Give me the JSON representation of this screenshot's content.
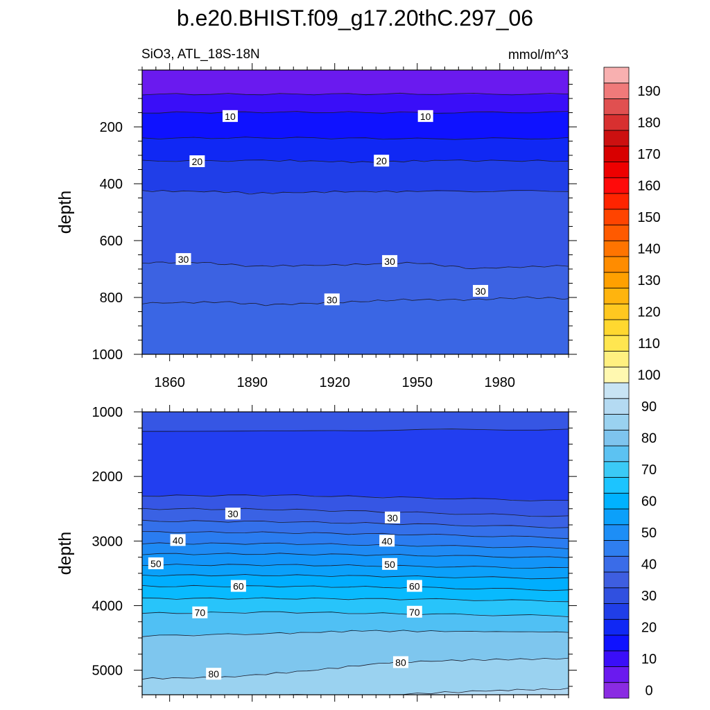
{
  "chart_data": {
    "type": "contour",
    "title": "b.e20.BHIST.f09_g17.20thC.297_06",
    "variable_label": "SiO3, ATL_18S-18N",
    "units": "mmol/m^3",
    "x_ticks": [
      1860,
      1890,
      1920,
      1950,
      1980
    ],
    "xlim": [
      1850,
      2005
    ],
    "colorbar": {
      "levels": [
        0,
        5,
        10,
        15,
        20,
        25,
        30,
        35,
        40,
        45,
        50,
        55,
        60,
        65,
        70,
        75,
        80,
        85,
        90,
        95,
        100,
        105,
        110,
        115,
        120,
        125,
        130,
        135,
        140,
        145,
        150,
        155,
        160,
        165,
        170,
        175,
        180,
        185,
        190,
        195
      ],
      "tick_labels": [
        "0",
        "10",
        "20",
        "30",
        "40",
        "50",
        "60",
        "70",
        "80",
        "90",
        "100",
        "110",
        "120",
        "130",
        "140",
        "150",
        "160",
        "170",
        "180",
        "190"
      ],
      "colors": [
        "#8a2be2",
        "#6a1aef",
        "#3a0ef8",
        "#0f12ff",
        "#1028f4",
        "#203ee8",
        "#3050e0",
        "#3e5ee0",
        "#3a6ce8",
        "#2f7ef0",
        "#1d8ef6",
        "#0ca0fa",
        "#00b2ff",
        "#1cc4ff",
        "#3bcaf6",
        "#5cc2f2",
        "#7ec4ee",
        "#9ad2f0",
        "#b4daf2",
        "#c8e4f4",
        "#fff8b0",
        "#fff080",
        "#ffe650",
        "#ffd830",
        "#ffc820",
        "#ffb40e",
        "#ffa000",
        "#ff8c00",
        "#ff7400",
        "#ff5a00",
        "#ff4400",
        "#ff2400",
        "#ff0a0a",
        "#ee0000",
        "#d80000",
        "#cc1010",
        "#d83030",
        "#e05050",
        "#f07a7a",
        "#f8b0b0"
      ]
    },
    "panels": [
      {
        "name": "upper",
        "ylabel": "depth",
        "ylim": [
          0,
          1000
        ],
        "y_ticks": [
          200,
          400,
          600,
          800,
          1000
        ],
        "bands": [
          {
            "top": [
              [
                1850,
                0
              ],
              [
                2005,
                0
              ]
            ],
            "color": "#6a1aef"
          },
          {
            "top": [
              [
                1850,
                85
              ],
              [
                1900,
                85
              ],
              [
                1950,
                84
              ],
              [
                2005,
                85
              ]
            ],
            "color": "#3a0ef8"
          },
          {
            "top": [
              [
                1850,
                150
              ],
              [
                1900,
                148
              ],
              [
                1950,
                150
              ],
              [
                2005,
                148
              ]
            ],
            "color": "#0f12ff"
          },
          {
            "top": [
              [
                1850,
                240
              ],
              [
                1900,
                238
              ],
              [
                1950,
                242
              ],
              [
                2005,
                240
              ]
            ],
            "color": "#1028f4"
          },
          {
            "top": [
              [
                1850,
                320
              ],
              [
                1900,
                318
              ],
              [
                1930,
                324
              ],
              [
                1960,
                318
              ],
              [
                2005,
                320
              ]
            ],
            "color": "#203ee8"
          },
          {
            "top": [
              [
                1850,
                425
              ],
              [
                1880,
                428
              ],
              [
                1890,
                434
              ],
              [
                1920,
                428
              ],
              [
                1950,
                427
              ],
              [
                2005,
                425
              ]
            ],
            "color": "#3656e4"
          },
          {
            "top": [
              [
                1850,
                678
              ],
              [
                1870,
                676
              ],
              [
                1890,
                690
              ],
              [
                1920,
                686
              ],
              [
                1950,
                678
              ],
              [
                1970,
                698
              ],
              [
                2005,
                688
              ]
            ],
            "color": "#3c62e2"
          },
          {
            "top": [
              [
                1850,
                820
              ],
              [
                1880,
                816
              ],
              [
                1895,
                826
              ],
              [
                1920,
                818
              ],
              [
                1945,
                808
              ],
              [
                1970,
                808
              ],
              [
                1990,
                800
              ],
              [
                2005,
                804
              ]
            ],
            "color": "#3a66e4"
          }
        ],
        "contour_labels": [
          {
            "text": "10",
            "x": 1882,
            "y": 163
          },
          {
            "text": "10",
            "x": 1953,
            "y": 163
          },
          {
            "text": "20",
            "x": 1870,
            "y": 322
          },
          {
            "text": "20",
            "x": 1937,
            "y": 320
          },
          {
            "text": "30",
            "x": 1865,
            "y": 666
          },
          {
            "text": "30",
            "x": 1940,
            "y": 673
          },
          {
            "text": "30",
            "x": 1919,
            "y": 808
          },
          {
            "text": "30",
            "x": 1973,
            "y": 778
          }
        ]
      },
      {
        "name": "lower",
        "ylabel": "depth",
        "ylim": [
          1000,
          5380
        ],
        "y_ticks": [
          1000,
          2000,
          3000,
          4000,
          5000
        ],
        "bands": [
          {
            "top": [
              [
                1850,
                1000
              ],
              [
                2005,
                1000
              ]
            ],
            "color": "#3656e4"
          },
          {
            "top": [
              [
                1850,
                1290
              ],
              [
                1920,
                1285
              ],
              [
                2005,
                1270
              ]
            ],
            "color": "#223ef0"
          },
          {
            "top": [
              [
                1850,
                2300
              ],
              [
                1900,
                2290
              ],
              [
                1950,
                2330
              ],
              [
                2005,
                2380
              ]
            ],
            "color": "#3656e4"
          },
          {
            "top": [
              [
                1850,
                2500
              ],
              [
                1900,
                2510
              ],
              [
                1950,
                2560
              ],
              [
                2005,
                2620
              ]
            ],
            "color": "#3a62e4"
          },
          {
            "top": [
              [
                1850,
                2690
              ],
              [
                1900,
                2700
              ],
              [
                1950,
                2740
              ],
              [
                2005,
                2790
              ]
            ],
            "color": "#3470ea"
          },
          {
            "top": [
              [
                1850,
                2860
              ],
              [
                1900,
                2870
              ],
              [
                1950,
                2900
              ],
              [
                2005,
                2950
              ]
            ],
            "color": "#2a7cf0"
          },
          {
            "top": [
              [
                1850,
                3040
              ],
              [
                1900,
                3040
              ],
              [
                1950,
                3070
              ],
              [
                2005,
                3110
              ]
            ],
            "color": "#1e8af4"
          },
          {
            "top": [
              [
                1850,
                3200
              ],
              [
                1900,
                3200
              ],
              [
                1950,
                3220
              ],
              [
                2005,
                3260
              ]
            ],
            "color": "#1294f8"
          },
          {
            "top": [
              [
                1850,
                3370
              ],
              [
                1900,
                3370
              ],
              [
                1950,
                3390
              ],
              [
                2005,
                3420
              ]
            ],
            "color": "#0aa0fa"
          },
          {
            "top": [
              [
                1850,
                3530
              ],
              [
                1900,
                3530
              ],
              [
                1950,
                3550
              ],
              [
                2005,
                3580
              ]
            ],
            "color": "#00aefe"
          },
          {
            "top": [
              [
                1850,
                3700
              ],
              [
                1900,
                3700
              ],
              [
                1950,
                3720
              ],
              [
                2005,
                3760
              ]
            ],
            "color": "#08bafe"
          },
          {
            "top": [
              [
                1850,
                3890
              ],
              [
                1900,
                3890
              ],
              [
                1950,
                3900
              ],
              [
                2005,
                3930
              ]
            ],
            "color": "#28c4fa"
          },
          {
            "top": [
              [
                1850,
                4120
              ],
              [
                1900,
                4100
              ],
              [
                1950,
                4130
              ],
              [
                2005,
                4160
              ]
            ],
            "color": "#50c0f4"
          },
          {
            "top": [
              [
                1850,
                4470
              ],
              [
                1900,
                4430
              ],
              [
                1930,
                4390
              ],
              [
                1970,
                4400
              ],
              [
                2005,
                4410
              ]
            ],
            "color": "#7ec6ee"
          },
          {
            "top": [
              [
                1850,
                5130
              ],
              [
                1880,
                5110
              ],
              [
                1910,
                5010
              ],
              [
                1940,
                4880
              ],
              [
                1970,
                4840
              ],
              [
                2005,
                4820
              ]
            ],
            "color": "#9ad2f0"
          },
          {
            "top": [
              [
                1850,
                5400
              ],
              [
                1940,
                5380
              ],
              [
                1980,
                5310
              ],
              [
                2005,
                5290
              ]
            ],
            "color": "#b0d8f2"
          }
        ],
        "contour_labels": [
          {
            "text": "30",
            "x": 1883,
            "y": 2580
          },
          {
            "text": "30",
            "x": 1941,
            "y": 2640
          },
          {
            "text": "40",
            "x": 1863,
            "y": 2990
          },
          {
            "text": "40",
            "x": 1939,
            "y": 3000
          },
          {
            "text": "50",
            "x": 1855,
            "y": 3350
          },
          {
            "text": "50",
            "x": 1940,
            "y": 3360
          },
          {
            "text": "60",
            "x": 1885,
            "y": 3700
          },
          {
            "text": "60",
            "x": 1949,
            "y": 3700
          },
          {
            "text": "70",
            "x": 1871,
            "y": 4110
          },
          {
            "text": "70",
            "x": 1949,
            "y": 4100
          },
          {
            "text": "80",
            "x": 1876,
            "y": 5060
          },
          {
            "text": "80",
            "x": 1944,
            "y": 4880
          }
        ]
      }
    ]
  }
}
